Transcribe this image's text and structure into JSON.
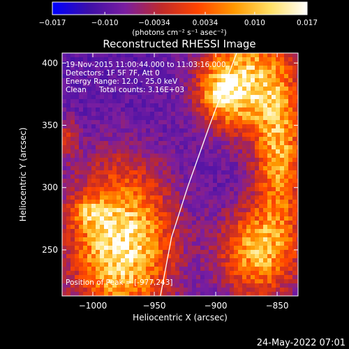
{
  "chart_data": {
    "type": "heatmap",
    "title": "Reconstructed RHESSI Image",
    "xlabel": "Heliocentric X (arcsec)",
    "ylabel": "Heliocentric Y (arcsec)",
    "xlim": [
      -1025,
      -833
    ],
    "ylim": [
      213,
      408
    ],
    "x_ticks": [
      -1000,
      -950,
      -900,
      -850
    ],
    "x_tick_labels": [
      "−1000",
      "−950",
      "−900",
      "−850"
    ],
    "y_ticks": [
      250,
      300,
      350,
      400
    ],
    "y_tick_labels": [
      "250",
      "300",
      "350",
      "400"
    ],
    "colorbar": {
      "range": [
        -0.017,
        0.017
      ],
      "ticks": [
        -0.017,
        -0.01,
        -0.0034,
        0.0034,
        0.01,
        0.017
      ],
      "tick_labels": [
        "−0.017",
        "−0.010",
        "−0.0034",
        "0.0034",
        "0.010",
        "0.017"
      ],
      "units": "(photons cm⁻² s⁻¹ asec⁻²)",
      "colors": [
        "#0000ff",
        "#3d0fa8",
        "#7a1ea0",
        "#c02a2a",
        "#ff4500",
        "#ff9900",
        "#ffe066",
        "#ffffff"
      ]
    },
    "annotations": {
      "time": "19-Nov-2015 11:00:44.000 to 11:03:16.000",
      "detectors": "Detectors: 1F 5F 7F, Att 0",
      "energy": "Energy Range: 12.0 - 25.0 keV",
      "algorithm": "Clean",
      "counts": "Total counts: 3.16E+03",
      "peak": "Position of Peak = [-977,243]"
    },
    "peak": {
      "x": -977,
      "y": 243
    },
    "limb": [
      [
        -945,
        213
      ],
      [
        -936,
        260
      ],
      [
        -923,
        300
      ],
      [
        -905,
        350
      ],
      [
        -883,
        408
      ]
    ],
    "sources": [
      {
        "x": -977,
        "y": 255,
        "sx": 28,
        "sy": 42,
        "amp": 1.0
      },
      {
        "x": -1005,
        "y": 280,
        "sx": 10,
        "sy": 8,
        "amp": 0.35
      },
      {
        "x": -875,
        "y": 385,
        "sx": 25,
        "sy": 28,
        "amp": 0.85
      },
      {
        "x": -895,
        "y": 375,
        "sx": 12,
        "sy": 14,
        "amp": 0.5
      },
      {
        "x": -848,
        "y": 325,
        "sx": 14,
        "sy": 40,
        "amp": 0.7
      },
      {
        "x": -865,
        "y": 248,
        "sx": 22,
        "sy": 25,
        "amp": 0.75
      },
      {
        "x": -1020,
        "y": 340,
        "sx": 6,
        "sy": 12,
        "amp": 0.3
      }
    ]
  },
  "footer": {
    "date": "24-May-2022 07:01"
  }
}
